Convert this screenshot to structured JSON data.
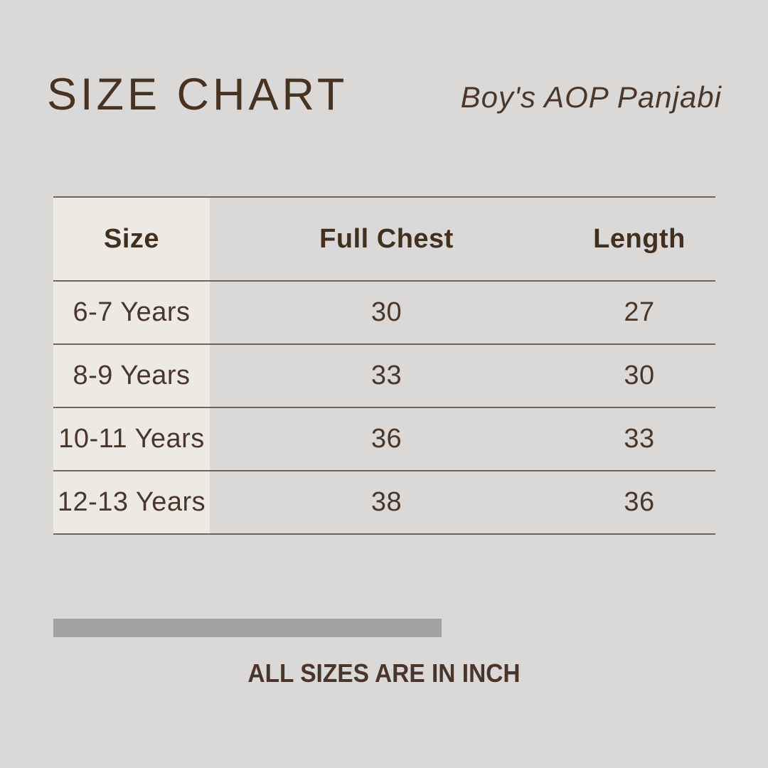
{
  "header": {
    "title": "SIZE CHART",
    "subtitle": "Boy's AOP Panjabi"
  },
  "table": {
    "headers": [
      "Size",
      "Full Chest",
      "Length"
    ],
    "rows": [
      {
        "size": "6-7 Years",
        "full_chest": "30",
        "length": "27"
      },
      {
        "size": "8-9 Years",
        "full_chest": "33",
        "length": "30"
      },
      {
        "size": "10-11 Years",
        "full_chest": "36",
        "length": "33"
      },
      {
        "size": "12-13 Years",
        "full_chest": "38",
        "length": "36"
      }
    ]
  },
  "footer": {
    "note": "ALL SIZES ARE IN INCH"
  },
  "colors": {
    "bg": "#dad9d7",
    "cream": "#edeae4",
    "brown": "#483220",
    "text": "#4a372a",
    "line": "#6e645b",
    "bar": "#a2a2a1"
  },
  "chart_data": {
    "type": "table",
    "title": "SIZE CHART",
    "subtitle": "Boy's AOP Panjabi",
    "columns": [
      "Size",
      "Full Chest",
      "Length"
    ],
    "rows": [
      [
        "6-7 Years",
        30,
        27
      ],
      [
        "8-9 Years",
        33,
        30
      ],
      [
        "10-11 Years",
        36,
        33
      ],
      [
        "12-13 Years",
        38,
        36
      ]
    ],
    "units": "inch",
    "note": "ALL SIZES ARE IN INCH"
  }
}
